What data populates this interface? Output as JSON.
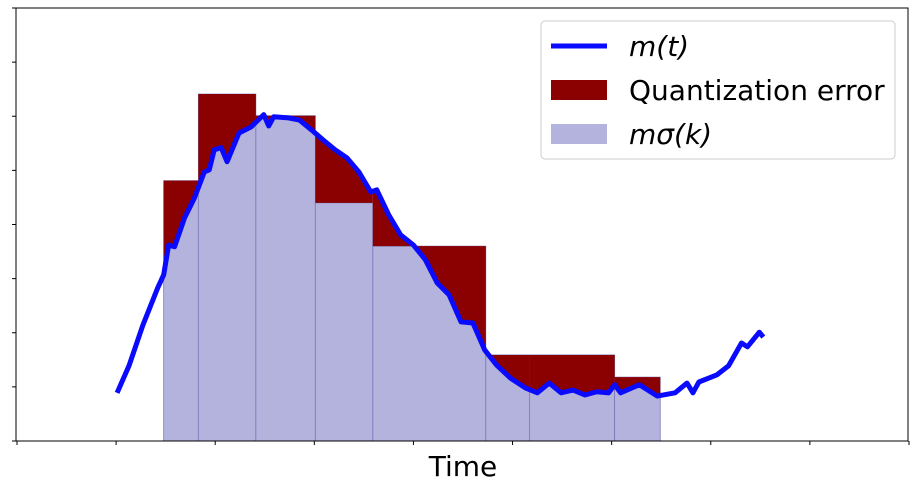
{
  "chart_data": {
    "type": "line",
    "xlabel": "Time",
    "xlim": [
      -0.01,
      8.99
    ],
    "ylim": [
      0,
      8
    ],
    "xticks": [
      0,
      1,
      2,
      3,
      4,
      5,
      6,
      7,
      8,
      9
    ],
    "yticks": [
      0,
      1,
      2,
      3,
      4,
      5,
      6,
      7,
      8
    ],
    "legend": "upper right",
    "series": [
      {
        "name": "m(t)",
        "type": "line",
        "color": "#0a0aff",
        "x": [
          1.01,
          1.13,
          1.27,
          1.42,
          1.48,
          1.53,
          1.59,
          1.69,
          1.79,
          1.89,
          1.94,
          1.99,
          2.06,
          2.12,
          2.24,
          2.36,
          2.49,
          2.54,
          2.59,
          2.74,
          2.85,
          2.97,
          3.09,
          3.21,
          3.33,
          3.45,
          3.57,
          3.63,
          3.75,
          3.87,
          4.0,
          4.12,
          4.24,
          4.36,
          4.48,
          4.6,
          4.72,
          4.84,
          4.98,
          5.13,
          5.25,
          5.37,
          5.49,
          5.61,
          5.73,
          5.85,
          5.97,
          6.03,
          6.09,
          6.28,
          6.46,
          6.64,
          6.76,
          6.82,
          6.88,
          7.06,
          7.18,
          7.31,
          7.37,
          7.49,
          7.53
        ],
        "values": [
          0.89,
          1.39,
          2.14,
          2.83,
          3.07,
          3.62,
          3.59,
          4.12,
          4.49,
          4.97,
          5.01,
          5.38,
          5.42,
          5.16,
          5.69,
          5.8,
          6.03,
          5.82,
          5.99,
          5.97,
          5.93,
          5.75,
          5.56,
          5.38,
          5.23,
          4.97,
          4.6,
          4.64,
          4.18,
          3.81,
          3.62,
          3.35,
          2.92,
          2.7,
          2.2,
          2.18,
          1.68,
          1.4,
          1.16,
          0.98,
          0.89,
          1.07,
          0.89,
          0.94,
          0.85,
          0.91,
          0.89,
          1.04,
          0.89,
          1.04,
          0.83,
          0.89,
          1.07,
          0.89,
          1.09,
          1.22,
          1.39,
          1.81,
          1.74,
          2.01,
          1.92
        ]
      },
      {
        "name": "Quantization error",
        "type": "error",
        "color": "#8b0000"
      },
      {
        "name": "mσ(k)",
        "type": "step_bar",
        "color": "#b3b3dd",
        "bins": [
          1.48,
          1.83,
          2.41,
          3.01,
          3.59,
          4.73,
          5.17,
          6.03,
          6.49
        ],
        "values": [
          4.81,
          6.41,
          6.01,
          4.4,
          3.6,
          1.59,
          1.59,
          1.18
        ]
      }
    ]
  }
}
